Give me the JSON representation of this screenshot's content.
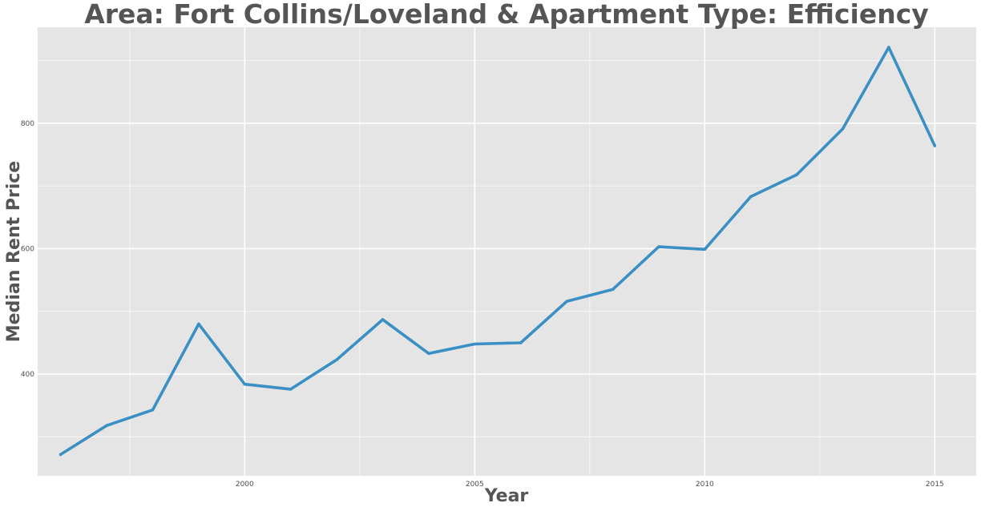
{
  "chart_data": {
    "type": "line",
    "title": "Area: Fort Collins/Loveland & Apartment Type: Efficiency",
    "xlabel": "Year",
    "ylabel": "Median Rent Price",
    "x_ticks": [
      2000,
      2005,
      2010,
      2015
    ],
    "y_ticks": [
      400,
      600,
      800
    ],
    "xlim": [
      1995.5,
      2015.9
    ],
    "ylim": [
      238,
      953
    ],
    "grid": true,
    "legend": "none",
    "background_color": "#e5e5e5",
    "grid_color": "#ffffff",
    "line_color": "#3a8fc4",
    "series": [
      {
        "x": [
          1996,
          1997,
          1998,
          1999,
          2000,
          2001,
          2002,
          2003,
          2004,
          2005,
          2006,
          2007,
          2008,
          2009,
          2010,
          2011,
          2012,
          2013,
          2014,
          2015
        ],
        "values": [
          272,
          318,
          343,
          480,
          384,
          376,
          423,
          487,
          433,
          448,
          450,
          516,
          535,
          603,
          599,
          683,
          718,
          791,
          921,
          764
        ]
      }
    ]
  }
}
